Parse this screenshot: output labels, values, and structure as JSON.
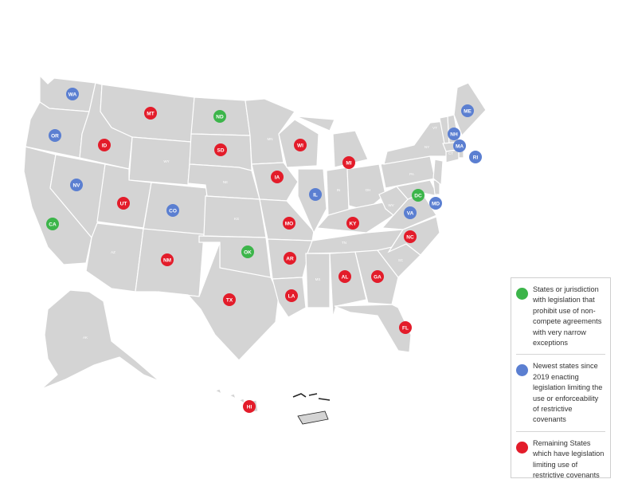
{
  "colors": {
    "land": "#d4d4d4",
    "prohibit": "#3cb54a",
    "newest": "#5b7fd1",
    "limiting": "#e31c2a",
    "state_label": "#ffffff"
  },
  "states_unmarked": [
    "WY",
    "NE",
    "KS",
    "AZ",
    "MN",
    "IN",
    "OH",
    "PA",
    "NY",
    "WV",
    "TN",
    "MS",
    "SC",
    "VT",
    "CT",
    "AK"
  ],
  "markers": [
    {
      "code": "WA",
      "category": "newest"
    },
    {
      "code": "OR",
      "category": "newest"
    },
    {
      "code": "CA",
      "category": "prohibit"
    },
    {
      "code": "NV",
      "category": "newest"
    },
    {
      "code": "ID",
      "category": "limiting"
    },
    {
      "code": "MT",
      "category": "limiting"
    },
    {
      "code": "UT",
      "category": "limiting"
    },
    {
      "code": "CO",
      "category": "newest"
    },
    {
      "code": "NM",
      "category": "limiting"
    },
    {
      "code": "ND",
      "category": "prohibit"
    },
    {
      "code": "SD",
      "category": "limiting"
    },
    {
      "code": "OK",
      "category": "prohibit"
    },
    {
      "code": "TX",
      "category": "limiting"
    },
    {
      "code": "IA",
      "category": "limiting"
    },
    {
      "code": "MO",
      "category": "limiting"
    },
    {
      "code": "AR",
      "category": "limiting"
    },
    {
      "code": "LA",
      "category": "limiting"
    },
    {
      "code": "WI",
      "category": "limiting"
    },
    {
      "code": "IL",
      "category": "newest"
    },
    {
      "code": "MI",
      "category": "limiting"
    },
    {
      "code": "KY",
      "category": "limiting"
    },
    {
      "code": "AL",
      "category": "limiting"
    },
    {
      "code": "GA",
      "category": "limiting"
    },
    {
      "code": "FL",
      "category": "limiting"
    },
    {
      "code": "NC",
      "category": "limiting"
    },
    {
      "code": "VA",
      "category": "newest"
    },
    {
      "code": "DC",
      "category": "prohibit"
    },
    {
      "code": "MD",
      "category": "newest"
    },
    {
      "code": "ME",
      "category": "newest"
    },
    {
      "code": "NH",
      "category": "newest"
    },
    {
      "code": "MA",
      "category": "newest"
    },
    {
      "code": "RI",
      "category": "newest"
    },
    {
      "code": "HI",
      "category": "limiting"
    }
  ],
  "legend": [
    {
      "category": "prohibit",
      "text": "States or jurisdiction with legislation that prohibit use of non-compete agreements with very narrow exceptions"
    },
    {
      "category": "newest",
      "text": "Newest states since 2019 enacting legislation limiting the use or enforceability of restrictive covenants"
    },
    {
      "category": "limiting",
      "text": "Remaining States which have legislation limiting use of restrictive covenants"
    }
  ]
}
